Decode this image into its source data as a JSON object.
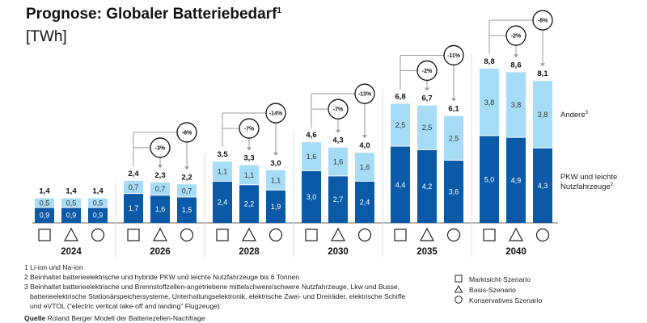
{
  "title": "Prognose: Globaler Batteriebedarf",
  "title_sup": "1",
  "unit": "[TWh]",
  "chart_data": {
    "type": "bar",
    "stacked": true,
    "title": "Prognose: Globaler Batteriebedarf",
    "ylabel": "[TWh]",
    "scenarios": [
      {
        "symbol": "square",
        "name": "Marktsicht-Szenario"
      },
      {
        "symbol": "triangle",
        "name": "Basis-Szenario"
      },
      {
        "symbol": "circle",
        "name": "Konservatives Szenario"
      }
    ],
    "series": [
      {
        "name": "PKW und leichte Nutzfahrzeuge",
        "sup": "2",
        "color": "#0a5aa8"
      },
      {
        "name": "Andere",
        "sup": "3",
        "color": "#a6dcf5"
      }
    ],
    "groups": [
      {
        "year": "2024",
        "bars": [
          {
            "pkw": "0,9",
            "andere": "0,5",
            "total": "1,4"
          },
          {
            "pkw": "0,9",
            "andere": "0,5",
            "total": "1,4"
          },
          {
            "pkw": "0,9",
            "andere": "0,5",
            "total": "1,4"
          }
        ],
        "changes": []
      },
      {
        "year": "2026",
        "bars": [
          {
            "pkw": "1,7",
            "andere": "0,7",
            "total": "2,4"
          },
          {
            "pkw": "1,6",
            "andere": "0,7",
            "total": "2,3"
          },
          {
            "pkw": "1,5",
            "andere": "0,7",
            "total": "2,2"
          }
        ],
        "changes": [
          "-3%",
          "-8%"
        ]
      },
      {
        "year": "2028",
        "bars": [
          {
            "pkw": "2,4",
            "andere": "1,1",
            "total": "3,5"
          },
          {
            "pkw": "2,2",
            "andere": "1,1",
            "total": "3,3"
          },
          {
            "pkw": "1,9",
            "andere": "1,1",
            "total": "3,0"
          }
        ],
        "changes": [
          "-7%",
          "-14%"
        ]
      },
      {
        "year": "2030",
        "bars": [
          {
            "pkw": "3,0",
            "andere": "1,6",
            "total": "4,6"
          },
          {
            "pkw": "2,7",
            "andere": "1,6",
            "total": "4,3"
          },
          {
            "pkw": "2,4",
            "andere": "1,6",
            "total": "4,0"
          }
        ],
        "changes": [
          "-7%",
          "-13%"
        ]
      },
      {
        "year": "2035",
        "bars": [
          {
            "pkw": "4,4",
            "andere": "2,5",
            "total": "6,8"
          },
          {
            "pkw": "4,2",
            "andere": "2,5",
            "total": "6,7"
          },
          {
            "pkw": "3,6",
            "andere": "2,5",
            "total": "6,1"
          }
        ],
        "changes": [
          "-2%",
          "-11%"
        ]
      },
      {
        "year": "2040",
        "bars": [
          {
            "pkw": "5,0",
            "andere": "3,8",
            "total": "8,8"
          },
          {
            "pkw": "4,9",
            "andere": "3,8",
            "total": "8,6"
          },
          {
            "pkw": "4,3",
            "andere": "3,8",
            "total": "8,1"
          }
        ],
        "changes": [
          "-2%",
          "-8%"
        ]
      }
    ]
  },
  "legend": {
    "andere": "Andere",
    "andere_sup": "3",
    "pkw_line1": "PKW und leichte",
    "pkw_line2": "Nutzfahrzeuge",
    "pkw_sup": "2",
    "scenarios": [
      "Marktsicht-Szenario",
      "Basis-Szenario",
      "Konservatives Szenario"
    ]
  },
  "footnotes": [
    "1 Li-ion und Na-ion",
    "2 Beinhaltet batterieelektrische und hybride PKW und leichte Nutzfahrzeuge bis 6 Tonnen",
    "3 Beinhaltet batterieelektrische und Brennstoffzellen-angetriebene mittelschwere/schwere Nutzfahrzeuge, Lkw und Busse,",
    "batterieelektrische Stationärspeichersysteme, Unterhaltungselektronik, elektrische Zwei- und Dreiräder, elektrische Schiffe",
    "und eVTOL (\"electric vertical take-off and landing\" Flugzeuge)"
  ],
  "source_label": "Quelle",
  "source_text": "Roland Berger Modell der Batteriezellen-Nachfrage"
}
